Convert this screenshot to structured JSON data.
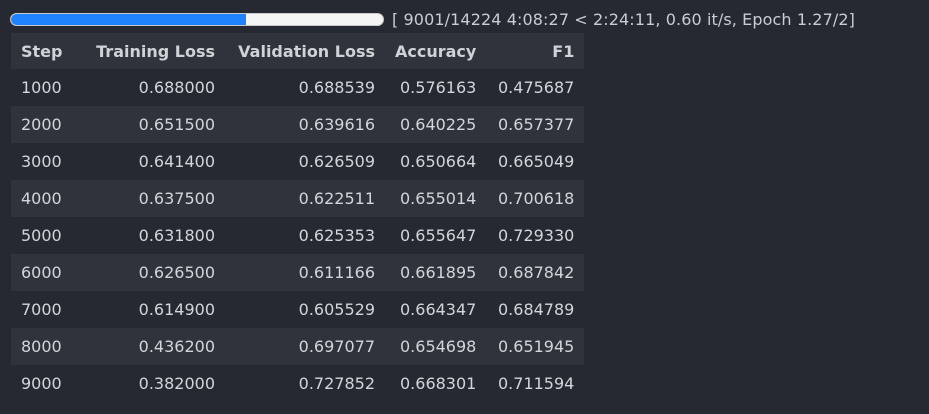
{
  "progress": {
    "fraction": 0.6328,
    "text": "[ 9001/14224 4:08:27 < 2:24:11, 0.60 it/s, Epoch 1.27/2]",
    "fill_color": "#1f82ff",
    "track_color": "#f4f4f4"
  },
  "table": {
    "headers": [
      "Step",
      "Training Loss",
      "Validation Loss",
      "Accuracy",
      "F1"
    ],
    "rows": [
      [
        "1000",
        "0.688000",
        "0.688539",
        "0.576163",
        "0.475687"
      ],
      [
        "2000",
        "0.651500",
        "0.639616",
        "0.640225",
        "0.657377"
      ],
      [
        "3000",
        "0.641400",
        "0.626509",
        "0.650664",
        "0.665049"
      ],
      [
        "4000",
        "0.637500",
        "0.622511",
        "0.655014",
        "0.700618"
      ],
      [
        "5000",
        "0.631800",
        "0.625353",
        "0.655647",
        "0.729330"
      ],
      [
        "6000",
        "0.626500",
        "0.611166",
        "0.661895",
        "0.687842"
      ],
      [
        "7000",
        "0.614900",
        "0.605529",
        "0.664347",
        "0.684789"
      ],
      [
        "8000",
        "0.436200",
        "0.697077",
        "0.654698",
        "0.651945"
      ],
      [
        "9000",
        "0.382000",
        "0.727852",
        "0.668301",
        "0.711594"
      ]
    ]
  }
}
